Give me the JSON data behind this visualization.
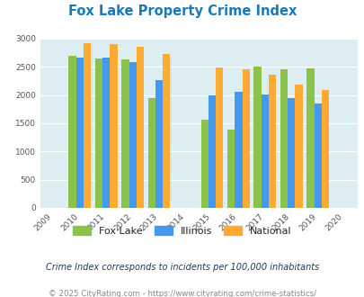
{
  "title": "Fox Lake Property Crime Index",
  "all_years": [
    2009,
    2010,
    2011,
    2012,
    2013,
    2014,
    2015,
    2016,
    2017,
    2018,
    2019,
    2020
  ],
  "data_years": [
    2010,
    2011,
    2012,
    2013,
    2015,
    2016,
    2017,
    2018,
    2019
  ],
  "fox_lake": [
    2700,
    2650,
    2630,
    1950,
    1570,
    1380,
    2500,
    2450,
    2480
  ],
  "illinois": [
    2660,
    2660,
    2580,
    2270,
    2000,
    2060,
    2010,
    1940,
    1850
  ],
  "national": [
    2920,
    2900,
    2850,
    2730,
    2490,
    2460,
    2360,
    2190,
    2090
  ],
  "ylim": [
    0,
    3000
  ],
  "yticks": [
    0,
    500,
    1000,
    1500,
    2000,
    2500,
    3000
  ],
  "fox_lake_color": "#8bc34a",
  "illinois_color": "#4499ee",
  "national_color": "#ffaa33",
  "plot_bg": "#ddeef2",
  "subtitle": "Crime Index corresponds to incidents per 100,000 inhabitants",
  "footer": "© 2025 CityRating.com - https://www.cityrating.com/crime-statistics/",
  "title_color": "#1a7ab8",
  "subtitle_color": "#1a3a5c",
  "footer_color": "#888888",
  "legend_labels": [
    "Fox Lake",
    "Illinois",
    "National"
  ],
  "bar_width": 0.28,
  "grid_color": "#ffffff"
}
